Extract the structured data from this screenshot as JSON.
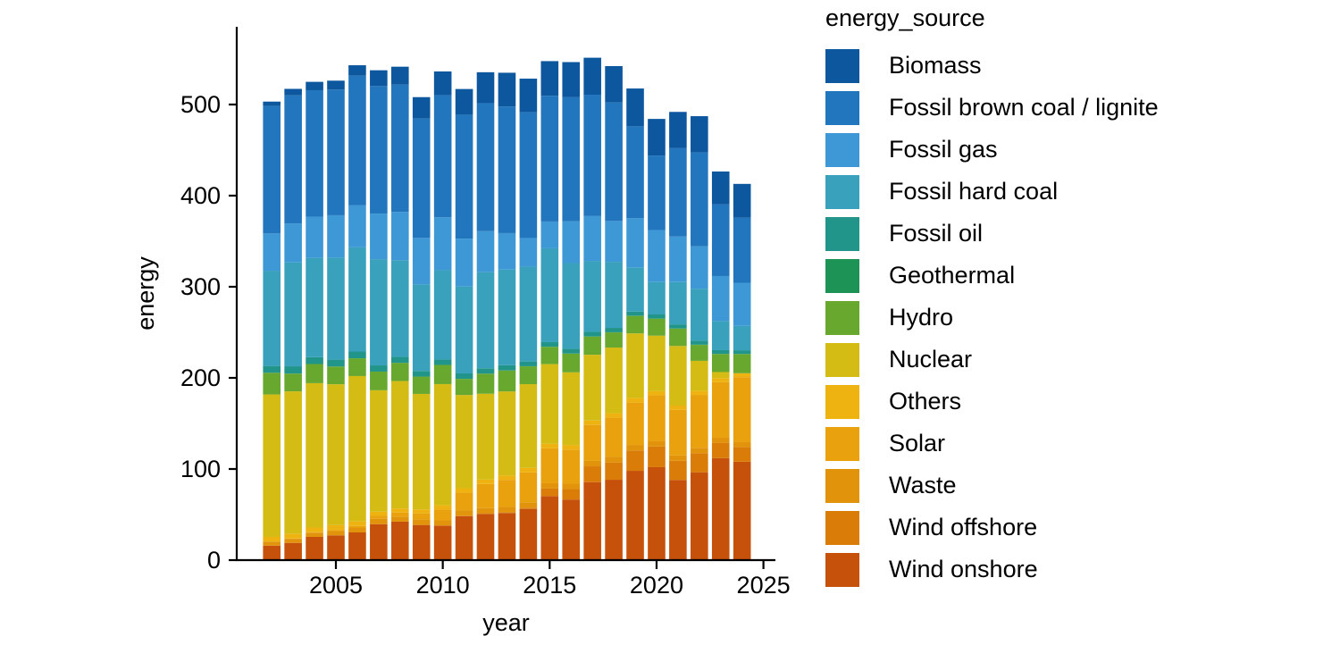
{
  "figure": {
    "background": "#ffffff",
    "text_color": "#000000",
    "axis_color": "#000000"
  },
  "legend": {
    "title": "energy_source",
    "position": "right",
    "entries": [
      {
        "label": "Biomass",
        "color": "#0d579f"
      },
      {
        "label": "Fossil brown coal / lignite",
        "color": "#2276bd"
      },
      {
        "label": "Fossil gas",
        "color": "#3d98d5"
      },
      {
        "label": "Fossil hard coal",
        "color": "#3aa1bd"
      },
      {
        "label": "Fossil oil",
        "color": "#219589"
      },
      {
        "label": "Geothermal",
        "color": "#1d9456"
      },
      {
        "label": "Hydro",
        "color": "#68a82f"
      },
      {
        "label": "Nuclear",
        "color": "#d5bc15"
      },
      {
        "label": "Others",
        "color": "#eeb211"
      },
      {
        "label": "Solar",
        "color": "#e9a10d"
      },
      {
        "label": "Waste",
        "color": "#e1940b"
      },
      {
        "label": "Wind offshore",
        "color": "#d97c08"
      },
      {
        "label": "Wind onshore",
        "color": "#c5510a"
      }
    ]
  },
  "chart_data": {
    "type": "bar",
    "stacked": true,
    "stack_order": "reverse-legend (first legend entry on top)",
    "title": "",
    "xlabel": "year",
    "ylabel": "energy",
    "x": [
      2002,
      2003,
      2004,
      2005,
      2006,
      2007,
      2008,
      2009,
      2010,
      2011,
      2012,
      2013,
      2014,
      2015,
      2016,
      2017,
      2018,
      2019,
      2020,
      2021,
      2022,
      2023,
      2024
    ],
    "x_ticks": [
      2005,
      2010,
      2015,
      2020,
      2025
    ],
    "y_ticks": [
      0,
      100,
      200,
      300,
      400,
      500
    ],
    "ylim": [
      0,
      580
    ],
    "grid": false,
    "series": [
      {
        "name": "Biomass",
        "color": "#0d579f",
        "values": [
          4.9,
          7.2,
          9.2,
          9.8,
          11.4,
          17.3,
          19.6,
          23.5,
          26.1,
          28.2,
          33.9,
          37.0,
          36.9,
          38.0,
          38.6,
          40.6,
          39.9,
          41.5,
          40.2,
          39.8,
          39.8,
          35.9,
          37.2
        ]
      },
      {
        "name": "Fossil brown coal / lignite",
        "color": "#2276bd",
        "values": [
          139.8,
          140.5,
          138.8,
          137.9,
          142.0,
          140.0,
          139.8,
          131.0,
          134.0,
          136.0,
          140.5,
          139.0,
          138.0,
          138.0,
          136.2,
          133.2,
          130.1,
          100.7,
          81.8,
          97.0,
          103.0,
          78.8,
          71.3
        ]
      },
      {
        "name": "Fossil gas",
        "color": "#3d98d5",
        "values": [
          40.9,
          42.8,
          45.2,
          46.5,
          46.4,
          50.0,
          53.0,
          51.0,
          58.0,
          52.5,
          45.0,
          40.0,
          31.5,
          29.4,
          45.8,
          49.2,
          44.8,
          54.1,
          57.0,
          50.0,
          46.5,
          49.4,
          47.3
        ]
      },
      {
        "name": "Fossil hard coal",
        "color": "#3aa1bd",
        "values": [
          104.5,
          114.0,
          109.0,
          112.0,
          114.4,
          116.6,
          106.0,
          95.0,
          98.0,
          95.4,
          105.5,
          105.0,
          104.0,
          103.0,
          94.0,
          77.8,
          72.5,
          48.5,
          35.6,
          46.4,
          57.1,
          32.0,
          26.8
        ]
      },
      {
        "name": "Fossil oil",
        "color": "#219589",
        "values": [
          7.5,
          8.0,
          7.5,
          7.5,
          7.4,
          6.8,
          6.6,
          6.2,
          6.0,
          6.0,
          5.9,
          5.7,
          5.2,
          5.0,
          5.2,
          5.0,
          4.8,
          4.6,
          4.4,
          4.4,
          4.4,
          4.0,
          4.0
        ]
      },
      {
        "name": "Geothermal",
        "color": "#1d9456",
        "values": [
          0,
          0,
          0,
          0,
          0,
          0,
          0,
          0,
          0,
          0.02,
          0.03,
          0.08,
          0.1,
          0.13,
          0.17,
          0.16,
          0.16,
          0.2,
          0.2,
          0.2,
          0.2,
          0.2,
          0.2
        ]
      },
      {
        "name": "Hydro",
        "color": "#68a82f",
        "values": [
          23.8,
          19.5,
          21.0,
          19.5,
          19.5,
          20.5,
          20.0,
          19.0,
          21.0,
          17.7,
          22.0,
          23.0,
          19.6,
          19.0,
          20.5,
          20.0,
          16.6,
          19.2,
          18.7,
          19.1,
          17.5,
          19.8,
          21.0
        ]
      },
      {
        "name": "Nuclear",
        "color": "#d5bc15",
        "values": [
          156.3,
          156.5,
          158.4,
          154.6,
          159.5,
          133.3,
          139.8,
          126.7,
          133.0,
          102.3,
          94.2,
          92.1,
          92.0,
          87.5,
          80.0,
          72.2,
          72.1,
          71.0,
          60.9,
          65.4,
          32.8,
          6.7,
          0
        ]
      },
      {
        "name": "Others",
        "color": "#eeb211",
        "values": [
          5.0,
          5.0,
          5.1,
          5.2,
          5.0,
          4.6,
          4.6,
          4.6,
          4.9,
          4.8,
          4.9,
          4.9,
          4.8,
          4.8,
          4.8,
          4.9,
          4.9,
          4.9,
          4.6,
          4.6,
          4.6,
          4.4,
          4.3
        ]
      },
      {
        "name": "Solar",
        "color": "#e9a10d",
        "values": [
          0.2,
          0.3,
          0.6,
          1.3,
          2.2,
          3.1,
          4.4,
          6.6,
          11.7,
          19.3,
          26.4,
          29.7,
          32.8,
          38.5,
          37.5,
          39.4,
          43.0,
          46.5,
          50.0,
          50.0,
          58.0,
          61.0,
          70.8
        ]
      },
      {
        "name": "Waste",
        "color": "#e1940b",
        "values": [
          4.4,
          4.5,
          4.6,
          4.7,
          4.9,
          5.9,
          5.5,
          5.9,
          5.6,
          5.9,
          5.7,
          5.8,
          5.9,
          5.8,
          5.9,
          6.0,
          6.1,
          6.1,
          6.0,
          6.0,
          5.9,
          5.5,
          5.8
        ]
      },
      {
        "name": "Wind offshore",
        "color": "#d97c08",
        "values": [
          0,
          0,
          0,
          0,
          0,
          0,
          0,
          0,
          0.2,
          0.6,
          0.7,
          0.9,
          1.4,
          8.2,
          11.4,
          17.3,
          19.0,
          22.3,
          22.8,
          21.0,
          21.0,
          16.8,
          16.2
        ]
      },
      {
        "name": "Wind onshore",
        "color": "#c5510a",
        "values": [
          15.9,
          18.9,
          25.5,
          27.2,
          30.4,
          39.5,
          42.2,
          38.6,
          37.8,
          48.3,
          50.7,
          51.7,
          56.2,
          70.3,
          66.5,
          85.6,
          88.2,
          98.0,
          102.0,
          88.0,
          96.4,
          112.0,
          108.0
        ]
      }
    ]
  }
}
